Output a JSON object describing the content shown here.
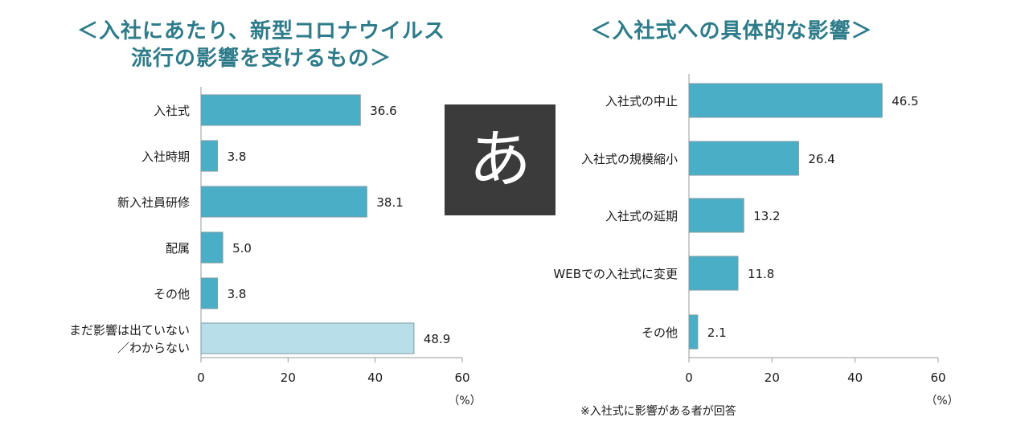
{
  "titles": {
    "left_line1": "＜入社にあたり、新型コロナウイルス",
    "left_line2": "流行の影響を受けるもの＞",
    "right": "＜入社式への具体的な影響＞"
  },
  "ime_badge": {
    "char": "あ"
  },
  "colors": {
    "bar": "#4aaec6",
    "bar_light": "#b8dfe9",
    "bar_border": "#7a9aa3",
    "axis": "#999999"
  },
  "chart_data": [
    {
      "type": "bar",
      "orientation": "horizontal",
      "title": "＜入社にあたり、新型コロナウイルス流行の影響を受けるもの＞",
      "categories": [
        "入社式",
        "入社時期",
        "新入社員研修",
        "配属",
        "その他",
        "まだ影響は出ていない／わからない"
      ],
      "category_lines": [
        [
          "入社式"
        ],
        [
          "入社時期"
        ],
        [
          "新入社員研修"
        ],
        [
          "配属"
        ],
        [
          "その他"
        ],
        [
          "まだ影響は出ていない",
          "／わからない"
        ]
      ],
      "values": [
        36.6,
        3.8,
        38.1,
        5.0,
        3.8,
        48.9
      ],
      "value_labels": [
        "36.6",
        "3.8",
        "38.1",
        "5.0",
        "3.8",
        "48.9"
      ],
      "highlight_light": [
        false,
        false,
        false,
        false,
        false,
        true
      ],
      "xlim": [
        0,
        60
      ],
      "ticks": [
        "0",
        "20",
        "40",
        "60"
      ],
      "unit": "（%）"
    },
    {
      "type": "bar",
      "orientation": "horizontal",
      "title": "＜入社式への具体的な影響＞",
      "categories": [
        "入社式の中止",
        "入社式の規模縮小",
        "入社式の延期",
        "WEBでの入社式に変更",
        "その他"
      ],
      "category_lines": [
        [
          "入社式の中止"
        ],
        [
          "入社式の規模縮小"
        ],
        [
          "入社式の延期"
        ],
        [
          "WEBでの入社式に変更"
        ],
        [
          "その他"
        ]
      ],
      "values": [
        46.5,
        26.4,
        13.2,
        11.8,
        2.1
      ],
      "value_labels": [
        "46.5",
        "26.4",
        "13.2",
        "11.8",
        "2.1"
      ],
      "highlight_light": [
        false,
        false,
        false,
        false,
        false
      ],
      "xlim": [
        0,
        60
      ],
      "ticks": [
        "0",
        "20",
        "40",
        "60"
      ],
      "unit": "（%）",
      "note": "※入社式に影響がある者が回答"
    }
  ]
}
